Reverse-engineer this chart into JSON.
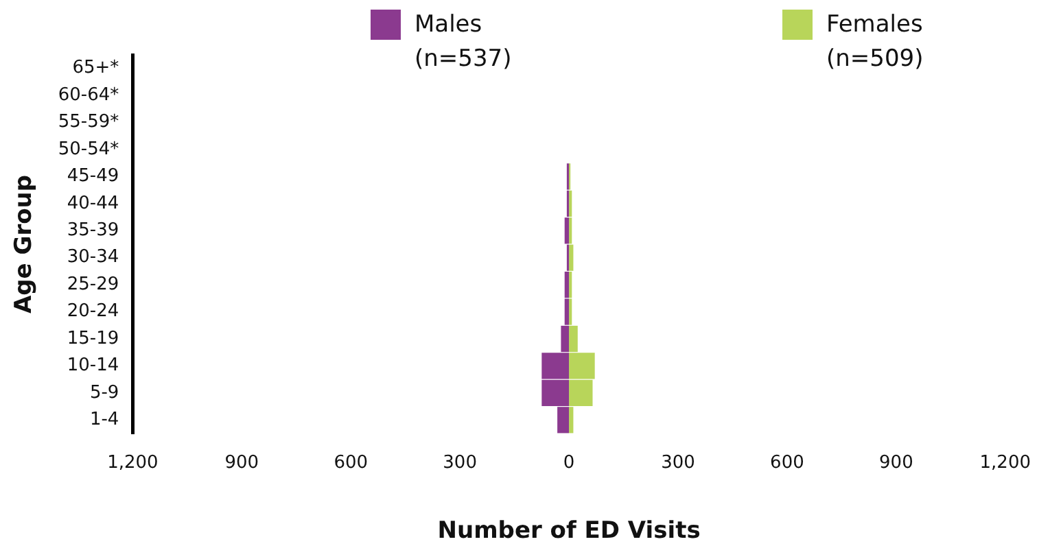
{
  "chart_data": {
    "type": "bar",
    "orientation": "horizontal",
    "stacked": true,
    "xlabel": "Number of ED Visits",
    "ylabel": "Age Group",
    "categories": [
      "65+*",
      "60-64*",
      "55-59*",
      "50-54*",
      "45-49",
      "40-44",
      "35-39",
      "30-34",
      "25-29",
      "20-24",
      "15-19",
      "10-14",
      "5-9",
      "1-4"
    ],
    "series": [
      {
        "name": "Males\n(n=537)",
        "color": "#8b3a8f",
        "values": [
          null,
          null,
          null,
          null,
          -6,
          -6,
          -12,
          -6,
          -12,
          -12,
          -22,
          -75,
          -75,
          -32
        ]
      },
      {
        "name": "Females\n(n=509)",
        "color": "#b8d55a",
        "values": [
          null,
          null,
          null,
          null,
          4,
          8,
          8,
          12,
          8,
          8,
          24,
          71,
          65,
          12
        ]
      }
    ],
    "xlim": [
      -1200,
      1200
    ],
    "xticks": [
      {
        "value": -1200,
        "label": "1,200"
      },
      {
        "value": -900,
        "label": "900"
      },
      {
        "value": -600,
        "label": "600"
      },
      {
        "value": -300,
        "label": "300"
      },
      0,
      300,
      600,
      900,
      {
        "value": 1200,
        "label": "1,200"
      }
    ],
    "grid": false,
    "legend": "top"
  }
}
